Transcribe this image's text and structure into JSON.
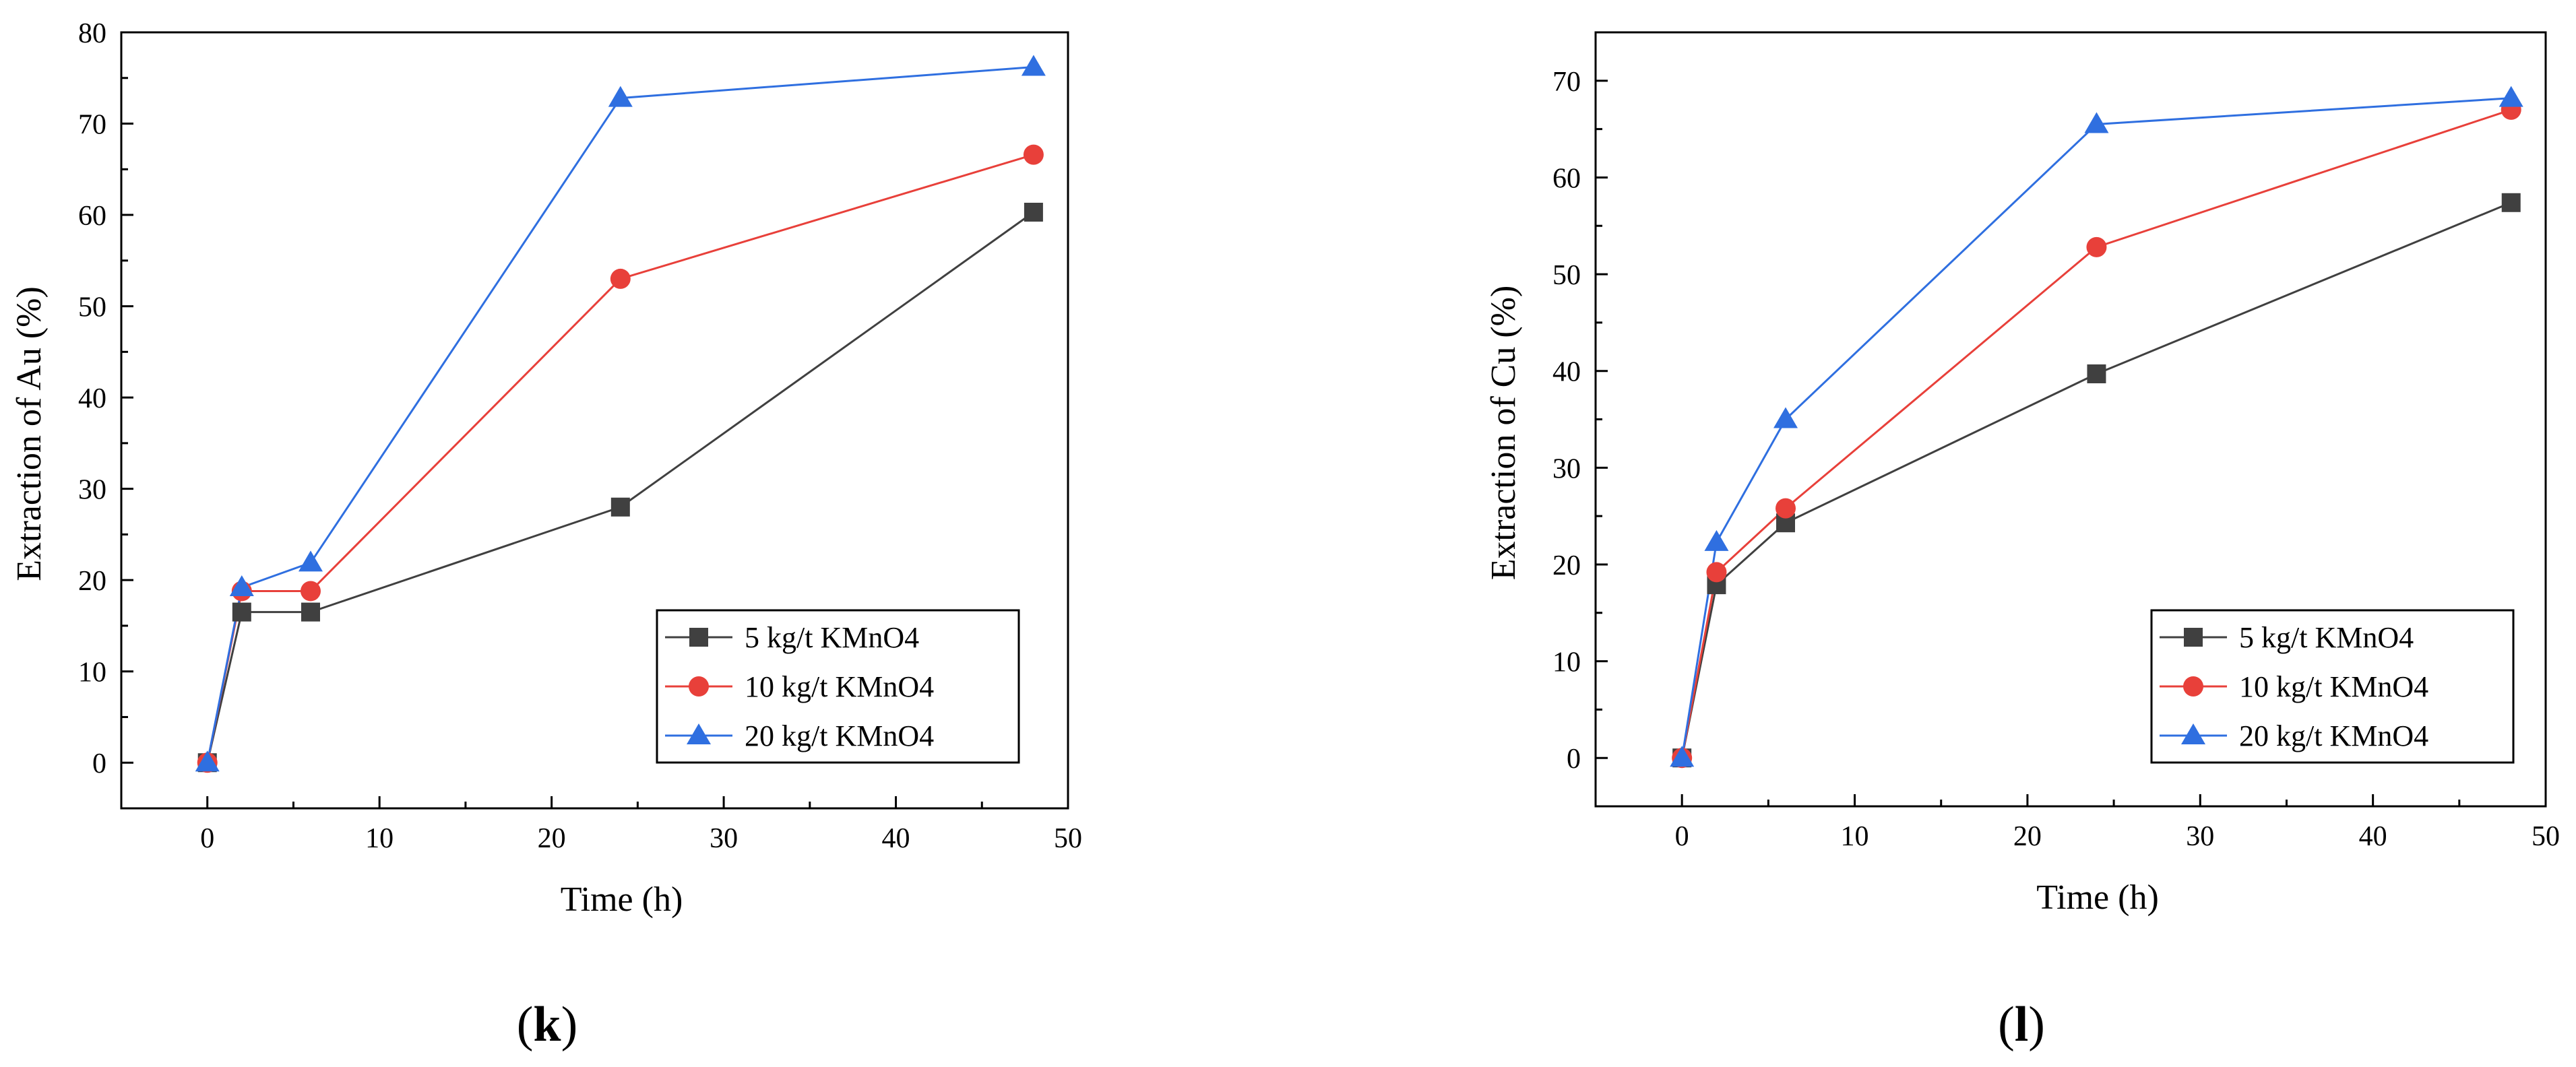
{
  "chart_data": [
    {
      "type": "line",
      "panel": "k",
      "xlabel": "Time (h)",
      "ylabel": "Extraction of Au (%)",
      "xlim": [
        -5,
        50
      ],
      "ylim": [
        -5,
        80
      ],
      "xticks": [
        0,
        10,
        20,
        30,
        40,
        50
      ],
      "yticks": [
        0,
        10,
        20,
        30,
        40,
        50,
        60,
        70,
        80
      ],
      "x": [
        0,
        2,
        6,
        24,
        48
      ],
      "series": [
        {
          "name": "5 kg/t KMnO4",
          "color": "#404040",
          "marker": "square",
          "values": [
            0,
            16.5,
            16.5,
            28,
            60.3
          ]
        },
        {
          "name": "10 kg/t KMnO4",
          "color": "#e8403a",
          "marker": "circle",
          "values": [
            0,
            18.8,
            18.8,
            53,
            66.6
          ]
        },
        {
          "name": "20 kg/t KMnO4",
          "color": "#2f6fe0",
          "marker": "triangle",
          "values": [
            0,
            19.2,
            21.9,
            72.8,
            76.2
          ]
        }
      ],
      "legend_position": "bottom-right",
      "caption": {
        "open": "(",
        "letter": "k",
        "close": ")"
      }
    },
    {
      "type": "line",
      "panel": "l",
      "xlabel": "Time (h)",
      "ylabel": "Extraction of Cu (%)",
      "xlim": [
        -5,
        50
      ],
      "ylim": [
        -5,
        75
      ],
      "xticks": [
        0,
        10,
        20,
        30,
        40,
        50
      ],
      "yticks": [
        0,
        10,
        20,
        30,
        40,
        50,
        60,
        70
      ],
      "x": [
        0,
        2,
        6,
        24,
        48
      ],
      "series": [
        {
          "name": "5 kg/t KMnO4",
          "color": "#404040",
          "marker": "square",
          "values": [
            0,
            17.9,
            24.3,
            39.7,
            57.4
          ]
        },
        {
          "name": "10 kg/t KMnO4",
          "color": "#e8403a",
          "marker": "circle",
          "values": [
            0,
            19.2,
            25.8,
            52.8,
            67
          ]
        },
        {
          "name": "20 kg/t KMnO4",
          "color": "#2f6fe0",
          "marker": "triangle",
          "values": [
            0,
            22.3,
            35,
            65.5,
            68.2
          ]
        }
      ],
      "legend_position": "bottom-right",
      "caption": {
        "open": "(",
        "letter": "l",
        "close": ")"
      }
    }
  ]
}
